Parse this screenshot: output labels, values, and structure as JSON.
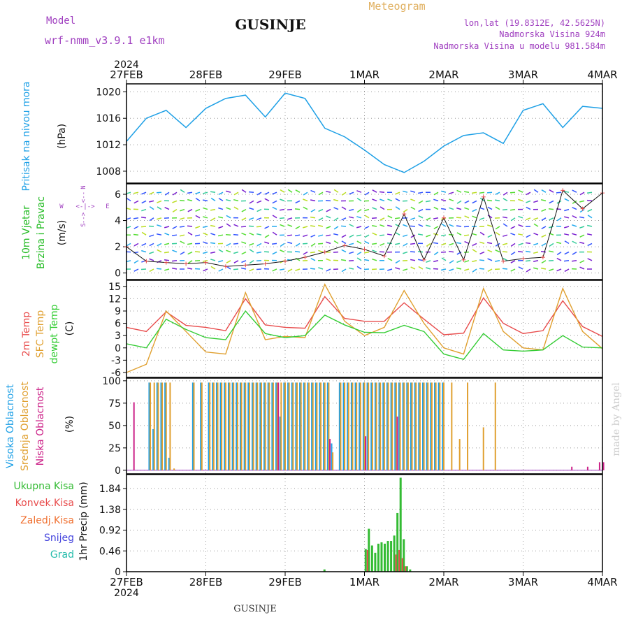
{
  "header": {
    "model_label": "Model",
    "model_name": "wrf-nmm_v3.9.1 e1km",
    "station": "GUSINJE",
    "meteogram_label": "Meteogram",
    "lonlat": "lon,lat (19.8312E, 42.5625N)",
    "elevation": "Nadmorska Visina 924m",
    "model_elevation": "Nadmorska Visina u modelu 981.584m",
    "footer_station": "GUSINJE",
    "watermark": "made by Angel"
  },
  "colors": {
    "pressure": "#1ea0e6",
    "wind_label": "#22bb22",
    "temp2m": "#e84c4c",
    "sfc_temp": "#e0a030",
    "dewpt": "#33cc33",
    "high_cloud": "#1ea0e6",
    "mid_cloud": "#e0a030",
    "low_cloud": "#cc2288",
    "total_precip": "#33bb33",
    "conv_precip": "#e84c4c",
    "frz_precip": "#f07030",
    "snow": "#4444dd",
    "graupel": "#22bbaa",
    "purple_text": "#a040c0",
    "orange_text": "#e0b060"
  },
  "time_axis": {
    "year": "2024",
    "ticks": [
      "27FEB",
      "28FEB",
      "29FEB",
      "1MAR",
      "2MAR",
      "3MAR",
      "4MAR"
    ]
  },
  "panels": {
    "pressure": {
      "label": "Pritisak na nivou mora",
      "unit": "(hPa)"
    },
    "wind": {
      "label1": "10m Vjetar",
      "label2": "Brzina i Pravac",
      "unit": "(m/s)",
      "compass_n": "N",
      "compass_s": "S",
      "compass_w": "W",
      "compass_e": "E"
    },
    "temp": {
      "label1": "2m Temp",
      "label2": "SFC Temp",
      "label3": "dewpt Temp",
      "unit": "(C)"
    },
    "cloud": {
      "label1": "Visoka Oblacnost",
      "label2": "Srednja Oblacnost",
      "label3": "Niska Oblacnost",
      "unit": "(%)"
    },
    "precip": {
      "legend": [
        "Ukupna Kisa",
        "Konvek.Kisa",
        "Zaledj.Kisa",
        "Snijeg",
        "Grad"
      ],
      "ylabel": "1hr Precip (mm)"
    }
  },
  "chart_data": [
    {
      "type": "line",
      "name": "pressure",
      "ylabel": "(hPa)",
      "ylim": [
        1006.2,
        1021.2
      ],
      "yticks": [
        "1008",
        "1012",
        "1016",
        "1020"
      ],
      "grid": true,
      "x_days": [
        0,
        0.25,
        0.5,
        0.75,
        1,
        1.25,
        1.5,
        1.75,
        2,
        2.25,
        2.5,
        2.75,
        3,
        3.25,
        3.5,
        3.75,
        4,
        4.25,
        4.5,
        4.75,
        5,
        5.25,
        5.5,
        5.75,
        6
      ],
      "series": [
        {
          "values": [
            1012.5,
            1016,
            1017.2,
            1014.6,
            1017.5,
            1019,
            1019.5,
            1016.2,
            1019.8,
            1019,
            1014.5,
            1013.2,
            1011.2,
            1009,
            1007.8,
            1009.5,
            1011.8,
            1013.4,
            1013.8,
            1012.2,
            1017.2,
            1018.2,
            1014.6,
            1017.8,
            1017.5
          ]
        }
      ]
    },
    {
      "type": "line",
      "name": "wind",
      "ylabel": "(m/s)",
      "ylim": [
        -0.5,
        6.8
      ],
      "yticks": [
        "0",
        "2",
        "4",
        "6"
      ],
      "grid": true,
      "x_days": [
        0,
        0.25,
        0.5,
        0.75,
        1,
        1.25,
        1.5,
        1.75,
        2,
        2.25,
        2.5,
        2.75,
        3,
        3.25,
        3.5,
        3.75,
        4,
        4.25,
        4.5,
        4.75,
        5,
        5.25,
        5.5,
        5.75,
        6
      ],
      "series": [
        {
          "values": [
            2,
            0.9,
            0.8,
            0.7,
            0.8,
            0.5,
            0.6,
            0.7,
            0.9,
            1.2,
            1.6,
            2.1,
            1.8,
            1.3,
            4.5,
            1,
            4.2,
            1,
            5.8,
            0.9,
            1.1,
            1.2,
            6.3,
            4.9,
            6.1
          ]
        }
      ]
    },
    {
      "type": "line",
      "name": "temperature",
      "ylabel": "(C)",
      "ylim": [
        -7.2,
        16.5
      ],
      "yticks": [
        "-6",
        "-3",
        "0",
        "3",
        "6",
        "9",
        "12",
        "15"
      ],
      "grid": true,
      "x_days": [
        0,
        0.25,
        0.5,
        0.75,
        1,
        1.25,
        1.5,
        1.75,
        2,
        2.25,
        2.5,
        2.75,
        3,
        3.25,
        3.5,
        3.75,
        4,
        4.25,
        4.5,
        4.75,
        5,
        5.25,
        5.5,
        5.75,
        6
      ],
      "series": [
        {
          "name": "2m Temp",
          "values": [
            5,
            4,
            8.8,
            5.5,
            5,
            4.2,
            12,
            5.6,
            5,
            4.8,
            12.5,
            7.2,
            6.5,
            6.5,
            11,
            7,
            3.2,
            3.6,
            12.2,
            6,
            3.5,
            4.2,
            11.5,
            5.2,
            2.8
          ]
        },
        {
          "name": "SFC Temp",
          "values": [
            -6,
            -4,
            9,
            4,
            -1,
            -1.5,
            13.5,
            2,
            2.8,
            2.5,
            15.5,
            6.5,
            3,
            5,
            14,
            6,
            0,
            -1.5,
            14.5,
            4,
            0,
            -0.5,
            14.5,
            4,
            -0.2
          ]
        },
        {
          "name": "dewpt Temp",
          "values": [
            1,
            0,
            7,
            4.5,
            2.5,
            2,
            9,
            3.5,
            2.5,
            3,
            8,
            5.6,
            3.8,
            3.7,
            5.5,
            4,
            -1.5,
            -2.8,
            3.5,
            -0.5,
            -0.8,
            -0.5,
            3,
            0.2,
            0
          ]
        }
      ]
    },
    {
      "type": "bar",
      "name": "cloud cover",
      "ylabel": "(%)",
      "ylim": [
        -4,
        103
      ],
      "yticks": [
        "0",
        "25",
        "50",
        "75",
        "100"
      ],
      "grid": true,
      "x_days": [
        0.08,
        0.3,
        0.35,
        0.4,
        0.45,
        0.5,
        0.55,
        0.6,
        0.75,
        0.85,
        0.95,
        1.05,
        1.1,
        1.15,
        1.2,
        1.25,
        1.3,
        1.35,
        1.4,
        1.45,
        1.5,
        1.55,
        1.6,
        1.65,
        1.7,
        1.75,
        1.8,
        1.85,
        1.9,
        1.95,
        2,
        2.05,
        2.1,
        2.15,
        2.2,
        2.25,
        2.3,
        2.35,
        2.4,
        2.45,
        2.5,
        2.55,
        2.6,
        2.7,
        2.75,
        2.8,
        2.85,
        2.9,
        2.95,
        3,
        3.05,
        3.1,
        3.15,
        3.2,
        3.25,
        3.3,
        3.35,
        3.4,
        3.45,
        3.5,
        3.55,
        3.6,
        3.65,
        3.7,
        3.75,
        3.8,
        3.85,
        3.9,
        3.95,
        4,
        4.1,
        4.2,
        4.3,
        4.5,
        4.65,
        5.6,
        5.8,
        5.95,
        6.0
      ],
      "series": [
        {
          "name": "Visoka Oblacnost",
          "values": [
            0,
            98,
            46,
            98,
            98,
            98,
            14,
            0,
            0,
            98,
            98,
            98,
            98,
            98,
            98,
            98,
            98,
            98,
            98,
            98,
            98,
            98,
            98,
            98,
            98,
            98,
            98,
            98,
            98,
            60,
            98,
            98,
            98,
            98,
            98,
            98,
            98,
            98,
            98,
            98,
            98,
            98,
            30,
            98,
            98,
            98,
            98,
            98,
            98,
            98,
            98,
            98,
            98,
            98,
            98,
            98,
            98,
            98,
            98,
            98,
            98,
            98,
            98,
            98,
            98,
            98,
            98,
            98,
            98,
            98,
            0,
            0,
            0,
            0,
            0,
            0,
            0,
            0,
            0
          ]
        },
        {
          "name": "Srednja Oblacnost",
          "values": [
            0,
            98,
            98,
            98,
            98,
            98,
            98,
            2,
            0,
            98,
            98,
            98,
            98,
            98,
            98,
            98,
            98,
            98,
            98,
            98,
            98,
            98,
            98,
            98,
            98,
            98,
            98,
            98,
            98,
            98,
            98,
            98,
            98,
            98,
            98,
            98,
            98,
            98,
            98,
            98,
            98,
            98,
            20,
            98,
            98,
            98,
            98,
            98,
            98,
            98,
            98,
            98,
            98,
            98,
            98,
            98,
            98,
            98,
            98,
            98,
            98,
            98,
            98,
            98,
            98,
            98,
            98,
            98,
            98,
            98,
            98,
            35,
            98,
            48,
            98,
            0,
            0,
            0,
            0
          ]
        },
        {
          "name": "Niska Oblacnost",
          "values": [
            76,
            0,
            0,
            0,
            0,
            0,
            0,
            0,
            0,
            0,
            0,
            0,
            0,
            0,
            0,
            0,
            0,
            0,
            0,
            0,
            0,
            0,
            0,
            0,
            0,
            0,
            0,
            0,
            98,
            0,
            0,
            0,
            0,
            0,
            0,
            0,
            0,
            0,
            0,
            0,
            0,
            35,
            0,
            0,
            0,
            0,
            0,
            0,
            0,
            38,
            0,
            0,
            0,
            0,
            0,
            0,
            0,
            60,
            0,
            0,
            0,
            0,
            0,
            0,
            0,
            0,
            0,
            0,
            0,
            0,
            0,
            0,
            0,
            0,
            0,
            4,
            4,
            9,
            9
          ]
        }
      ]
    },
    {
      "type": "bar",
      "name": "precipitation",
      "ylabel": "1hr Precip (mm)",
      "ylim": [
        0,
        2.15
      ],
      "yticks": [
        "0",
        "0.46",
        "0.92",
        "1.38",
        "1.84"
      ],
      "grid": true,
      "x_days": [
        2.5,
        3.02,
        3.06,
        3.1,
        3.14,
        3.18,
        3.22,
        3.26,
        3.3,
        3.34,
        3.38,
        3.42,
        3.46,
        3.5,
        3.54,
        3.58,
        3.62
      ],
      "series": [
        {
          "name": "Ukupna Kisa",
          "values": [
            0.05,
            0.5,
            0.95,
            0.58,
            0.42,
            0.62,
            0.65,
            0.62,
            0.68,
            0.68,
            0.8,
            1.3,
            2.08,
            0.72,
            0.12,
            0.05,
            0
          ]
        },
        {
          "name": "Konvek.Kisa",
          "values": [
            0,
            0.48,
            0,
            0,
            0,
            0,
            0,
            0,
            0,
            0,
            0.38,
            0.48,
            0.3,
            0.12,
            0,
            0,
            0
          ]
        }
      ]
    }
  ]
}
